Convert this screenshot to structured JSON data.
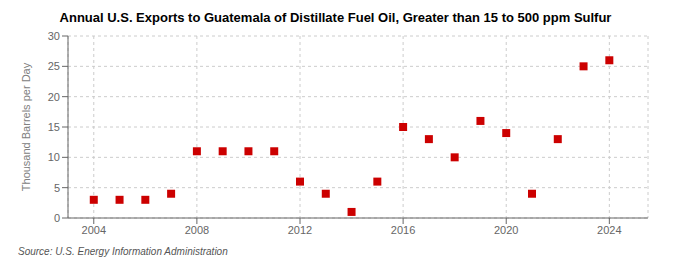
{
  "chart_data": {
    "type": "scatter",
    "title": "Annual U.S. Exports to Guatemala of Distillate Fuel Oil, Greater than 15 to 500 ppm Sulfur",
    "ylabel": "Thousand Barrels per Day",
    "annotations": [
      "Source: U.S. Energy Information Administration"
    ],
    "x": [
      2004,
      2005,
      2006,
      2007,
      2008,
      2009,
      2010,
      2011,
      2012,
      2013,
      2014,
      2015,
      2016,
      2017,
      2018,
      2019,
      2020,
      2021,
      2022,
      2023,
      2024
    ],
    "values": [
      3,
      3,
      3,
      4,
      11,
      11,
      11,
      11,
      6,
      4,
      1,
      6,
      15,
      13,
      10,
      16,
      14,
      4,
      13,
      25,
      26
    ],
    "color": "#cc0000",
    "marker": "square",
    "xlim": [
      2003,
      2025.5
    ],
    "ylim": [
      0,
      30
    ],
    "xticks": [
      2004,
      2008,
      2012,
      2016,
      2020,
      2024
    ],
    "yticks": [
      0,
      5,
      10,
      15,
      20,
      25,
      30
    ],
    "grid": true
  }
}
